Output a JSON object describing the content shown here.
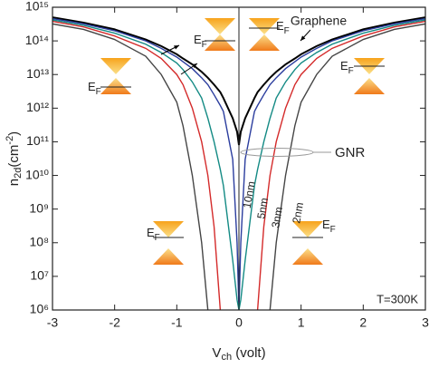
{
  "chart_data": {
    "type": "line",
    "x": [
      -3,
      -2.5,
      -2,
      -1.5,
      -1.25,
      -1,
      -0.9,
      -0.75,
      -0.6,
      -0.5,
      -0.4,
      -0.3,
      -0.25,
      -0.1,
      -0.03,
      0,
      0.03,
      0.1,
      0.25,
      0.3,
      0.4,
      0.5,
      0.6,
      0.75,
      0.9,
      1,
      1.25,
      1.5,
      2,
      2.5,
      3
    ],
    "series": [
      {
        "name": "Graphene",
        "color": "#000000",
        "values": [
          500000000000000.0,
          350000000000000.0,
          220000000000000.0,
          110000000000000.0,
          70000000000000.0,
          40000000000000.0,
          30000000000000.0,
          20000000000000.0,
          12000000000000.0,
          8000000000000.0,
          5000000000000.0,
          3000000000000.0,
          2000000000000.0,
          500000000000.0,
          200000000000.0,
          80000000000.0,
          200000000000.0,
          500000000000.0,
          2000000000000.0,
          3000000000000.0,
          5000000000000.0,
          8000000000000.0,
          12000000000000.0,
          20000000000000.0,
          30000000000000.0,
          40000000000000.0,
          70000000000000.0,
          110000000000000.0,
          220000000000000.0,
          350000000000000.0,
          500000000000000.0
        ]
      },
      {
        "name": "10nm",
        "color": "#2b3d9e",
        "values": [
          460000000000000.0,
          320000000000000.0,
          200000000000000.0,
          100000000000000.0,
          60000000000000.0,
          33000000000000.0,
          24000000000000.0,
          15000000000000.0,
          8000000000000.0,
          5000000000000.0,
          2500000000000.0,
          1200000000000.0,
          800000000000.0,
          30000000000.0,
          100000000.0,
          1000000.0,
          100000000.0,
          30000000000.0,
          800000000000.0,
          1200000000000.0,
          2500000000000.0,
          5000000000000.0,
          8000000000000.0,
          15000000000000.0,
          24000000000000.0,
          33000000000000.0,
          60000000000000.0,
          100000000000000.0,
          200000000000000.0,
          320000000000000.0,
          460000000000000.0
        ]
      },
      {
        "name": "5nm",
        "color": "#138a84",
        "values": [
          420000000000000.0,
          290000000000000.0,
          170000000000000.0,
          80000000000000.0,
          45000000000000.0,
          22000000000000.0,
          14000000000000.0,
          6000000000000.0,
          2000000000000.0,
          500000000000.0,
          100000000000.0,
          15000000000.0,
          5000000000.0,
          30000000.0,
          2000000.0,
          1000000.0,
          2000000.0,
          30000000.0,
          5000000000.0,
          15000000000.0,
          100000000000.0,
          500000000000.0,
          2000000000000.0,
          6000000000000.0,
          14000000000000.0,
          22000000000000.0,
          45000000000000.0,
          80000000000000.0,
          170000000000000.0,
          290000000000000.0,
          420000000000000.0
        ]
      },
      {
        "name": "3nm",
        "color": "#d42a2a",
        "values": [
          380000000000000.0,
          260000000000000.0,
          140000000000000.0,
          60000000000000.0,
          30000000000000.0,
          10000000000000.0,
          5000000000000.0,
          1000000000000.0,
          100000000000.0,
          10000000000.0,
          300000000.0,
          1000000.0,
          null,
          null,
          null,
          null,
          null,
          null,
          null,
          1000000.0,
          300000000.0,
          10000000000.0,
          100000000000.0,
          1000000000000.0,
          5000000000000.0,
          10000000000000.0,
          30000000000000.0,
          60000000000000.0,
          140000000000000.0,
          260000000000000.0,
          380000000000000.0
        ]
      },
      {
        "name": "2nm",
        "color": "#454545",
        "values": [
          320000000000000.0,
          220000000000000.0,
          110000000000000.0,
          35000000000000.0,
          10000000000000.0,
          1500000000000.0,
          300000000000.0,
          10000000000.0,
          100000000.0,
          1000000.0,
          null,
          null,
          null,
          null,
          null,
          null,
          null,
          null,
          null,
          null,
          null,
          1000000.0,
          100000000.0,
          10000000000.0,
          300000000000.0,
          1500000000000.0,
          10000000000000.0,
          35000000000000.0,
          110000000000000.0,
          220000000000000.0,
          320000000000000.0
        ]
      }
    ],
    "log_y": true,
    "xlim": [
      -3,
      3
    ],
    "xticks": [
      -3,
      -2,
      -1,
      0,
      1,
      2,
      3
    ],
    "ylim": [
      1000000.0,
      1000000000000000.0
    ],
    "yticks": [
      {
        "value": 1000000.0,
        "label": "10⁶"
      },
      {
        "value": 10000000.0,
        "label": "10⁷"
      },
      {
        "value": 100000000.0,
        "label": "10⁸"
      },
      {
        "value": 1000000000.0,
        "label": "10⁹"
      },
      {
        "value": 10000000000.0,
        "label": "10¹⁰"
      },
      {
        "value": 100000000000.0,
        "label": "10¹¹"
      },
      {
        "value": 1000000000000.0,
        "label": "10¹²"
      },
      {
        "value": 10000000000000.0,
        "label": "10¹³"
      },
      {
        "value": 100000000000000.0,
        "label": "10¹⁴"
      },
      {
        "value": 1000000000000000.0,
        "label": "10¹⁵"
      }
    ],
    "xlabel": [
      "V",
      "ch",
      " (volt)"
    ],
    "ylabel": [
      "n",
      "2d",
      "(cm",
      "-2",
      ")"
    ],
    "annotations": {
      "group": "GNR",
      "temperature": "T=300K",
      "fermi_labels": [
        [
          "E",
          "F"
        ],
        [
          "E",
          "F"
        ],
        [
          "E",
          "F"
        ],
        [
          "E",
          "F"
        ],
        [
          "E",
          "F"
        ],
        [
          "E",
          "F"
        ]
      ]
    }
  }
}
